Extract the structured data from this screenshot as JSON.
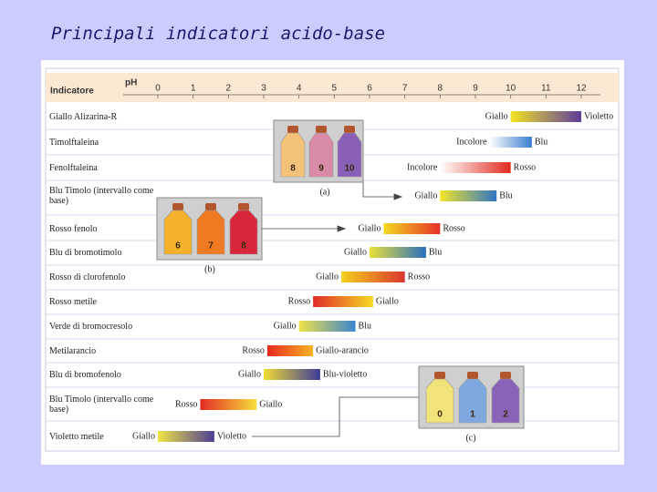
{
  "chart_data": {
    "type": "range",
    "title": "Principali indicatori acido-base",
    "category_header": "Indicatore",
    "x_label": "pH",
    "xlim": [
      0,
      12
    ],
    "xticks": [
      0,
      1,
      2,
      3,
      4,
      5,
      6,
      7,
      8,
      9,
      10,
      11,
      12
    ],
    "categories": [
      "Giallo Alizarina-R",
      "Timolftaleina",
      "Fenolftaleina",
      "Blu Timolo (intervallo come base)",
      "Rosso fenolo",
      "Blu di bromotimolo",
      "Rosso di clorofenolo",
      "Rosso metile",
      "Verde di bromocresolo",
      "Metilarancio",
      "Blu di bromofenolo",
      "Blu Timolo (intervallo come base)",
      "Violetto metile"
    ],
    "ranges": [
      {
        "low": 10.0,
        "high": 12.0,
        "low_label": "Giallo",
        "high_label": "Violetto",
        "colors": [
          "#f4e326",
          "#5b3b9c"
        ]
      },
      {
        "low": 9.4,
        "high": 10.6,
        "low_label": "Incolore",
        "high_label": "Blu",
        "colors": [
          "#ffffff",
          "#3b7fd0"
        ]
      },
      {
        "low": 8.0,
        "high": 10.0,
        "low_label": "Incolore",
        "high_label": "Rosso",
        "colors": [
          "#ffffff",
          "#e22b1f"
        ]
      },
      {
        "low": 8.0,
        "high": 9.6,
        "low_label": "Giallo",
        "high_label": "Blu",
        "colors": [
          "#f2e52a",
          "#2d74c4"
        ]
      },
      {
        "low": 6.4,
        "high": 8.0,
        "low_label": "Giallo",
        "high_label": "Rosso",
        "colors": [
          "#f5d820",
          "#e5302a"
        ]
      },
      {
        "low": 6.0,
        "high": 7.6,
        "low_label": "Giallo",
        "high_label": "Blu",
        "colors": [
          "#e8e03a",
          "#2a6fbd"
        ]
      },
      {
        "low": 5.2,
        "high": 7.0,
        "low_label": "Giallo",
        "high_label": "Rosso",
        "colors": [
          "#f4d11c",
          "#d9362f"
        ]
      },
      {
        "low": 4.4,
        "high": 6.1,
        "low_label": "Rosso",
        "high_label": "Giallo",
        "colors": [
          "#e12b28",
          "#f5da22"
        ]
      },
      {
        "low": 4.0,
        "high": 5.6,
        "low_label": "Giallo",
        "high_label": "Blu",
        "colors": [
          "#efe24a",
          "#3c86cf"
        ]
      },
      {
        "low": 3.1,
        "high": 4.4,
        "low_label": "Rosso",
        "high_label": "Giallo-arancio",
        "colors": [
          "#e8281e",
          "#f7b524"
        ]
      },
      {
        "low": 3.0,
        "high": 4.6,
        "low_label": "Giallo",
        "high_label": "Blu-violetto",
        "colors": [
          "#f1dc33",
          "#3a3b98"
        ]
      },
      {
        "low": 1.2,
        "high": 2.8,
        "low_label": "Rosso",
        "high_label": "Giallo",
        "colors": [
          "#e22b26",
          "#f6df3a"
        ]
      },
      {
        "low": 0.0,
        "high": 1.6,
        "low_label": "Giallo",
        "high_label": "Violetto",
        "colors": [
          "#f2e445",
          "#4d3d95"
        ]
      }
    ],
    "insets": [
      {
        "caption": "(a)",
        "labels": [
          "8",
          "9",
          "10"
        ],
        "colors": [
          "#f3c27a",
          "#d98aa8",
          "#8a5fb8"
        ]
      },
      {
        "caption": "(b)",
        "labels": [
          "6",
          "7",
          "8"
        ],
        "colors": [
          "#f4b22a",
          "#ef7a22",
          "#d8263a"
        ]
      },
      {
        "caption": "(c)",
        "labels": [
          "0",
          "1",
          "2"
        ],
        "colors": [
          "#f2e27a",
          "#7fa8de",
          "#8a62b8"
        ]
      }
    ]
  }
}
